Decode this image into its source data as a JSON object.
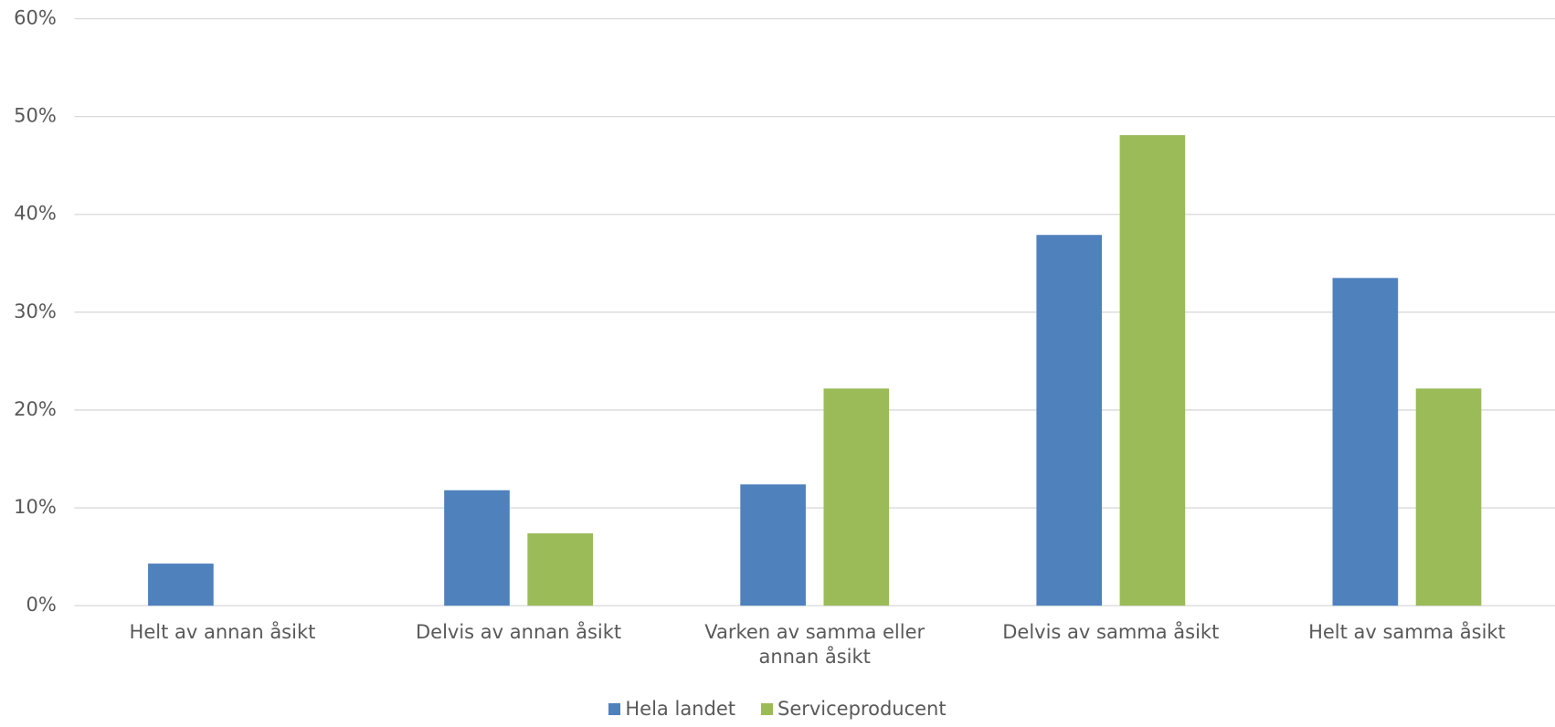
{
  "chart_data": {
    "type": "bar",
    "categories": [
      "Helt av annan åsikt",
      "Delvis av annan åsikt",
      "Varken av samma eller annan åsikt",
      "Delvis av samma åsikt",
      "Helt av samma åsikt"
    ],
    "series": [
      {
        "name": "Hela landet",
        "color": "#4f81bd",
        "values": [
          4.3,
          11.8,
          12.4,
          37.9,
          33.5
        ]
      },
      {
        "name": "Serviceproducent",
        "color": "#9bbb59",
        "values": [
          0,
          7.4,
          22.2,
          48.1,
          22.2
        ]
      }
    ],
    "ylim": [
      0,
      60
    ],
    "yticks": [
      {
        "value": 0,
        "label": "0%"
      },
      {
        "value": 10,
        "label": "10%"
      },
      {
        "value": 20,
        "label": "20%"
      },
      {
        "value": 30,
        "label": "30%"
      },
      {
        "value": 40,
        "label": "40%"
      },
      {
        "value": 50,
        "label": "50%"
      },
      {
        "value": 60,
        "label": "60%"
      }
    ],
    "grid": true
  }
}
